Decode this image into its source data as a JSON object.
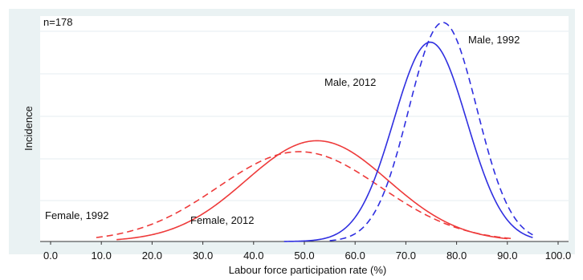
{
  "chart_data": {
    "type": "line",
    "title": "",
    "xlabel": "Labour force participation rate (%)",
    "ylabel": "Incidence",
    "xlim": [
      0,
      100
    ],
    "x_ticks": [
      "0.0",
      "10.0",
      "20.0",
      "30.0",
      "40.0",
      "50.0",
      "60.0",
      "70.0",
      "80.0",
      "90.0",
      "100.0"
    ],
    "y_tick_labels": "none",
    "grid": "horizontal",
    "annotation": "n=178",
    "series": [
      {
        "name": "Female, 1992",
        "color": "#ee3a3a",
        "style": "dashed",
        "mean": 49,
        "sd": 16,
        "peak": 0.41,
        "x_range": [
          9,
          91
        ]
      },
      {
        "name": "Female, 2012",
        "color": "#ee3a3a",
        "style": "solid",
        "mean": 52.5,
        "sd": 14,
        "peak": 0.46,
        "x_range": [
          13,
          90
        ]
      },
      {
        "name": "Male, 2012",
        "color": "#2f2fe0",
        "style": "solid",
        "mean": 74.8,
        "sd": 7.2,
        "peak": 0.91,
        "x_range": [
          46,
          95
        ]
      },
      {
        "name": "Male, 1992",
        "color": "#2f2fe0",
        "style": "dashed",
        "mean": 77.3,
        "sd": 6.7,
        "peak": 1.0,
        "x_range": [
          55,
          95
        ]
      }
    ]
  }
}
